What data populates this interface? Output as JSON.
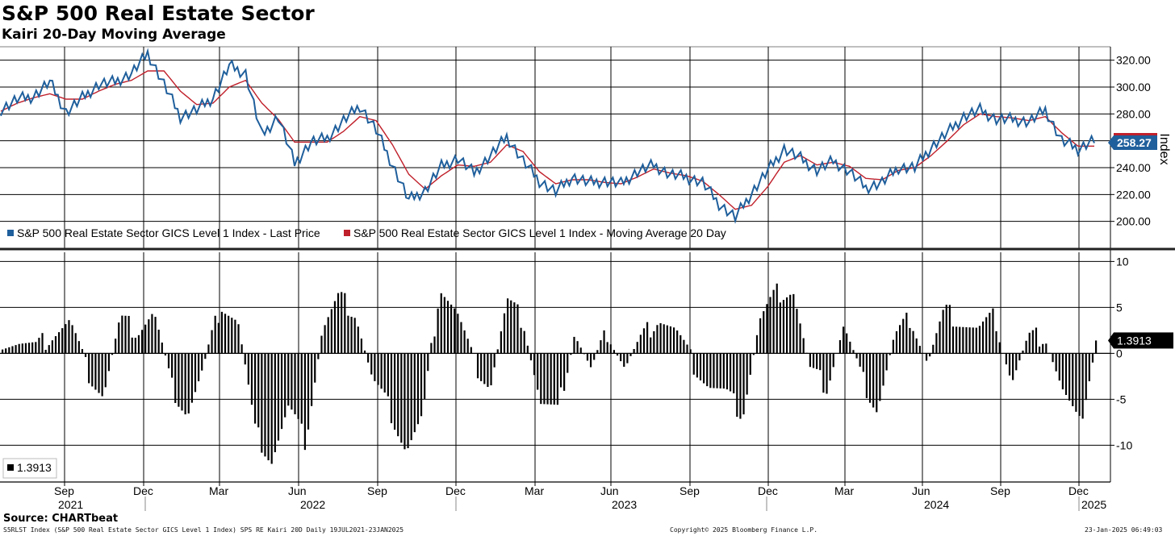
{
  "header": {
    "title": "S&P 500 Real Estate Sector",
    "subtitle": "Kairi 20-Day Moving Average"
  },
  "footer": {
    "source": "Source: CHARTbeat",
    "left_note": "S5RLST Index (S&P 500 Real Estate Sector GICS Level 1 Index) SPS RE Kairi 20D  Daily 19JUL2021-23JAN2025",
    "center_note": "Copyright© 2025 Bloomberg Finance L.P.",
    "right_note": "23-Jan-2025 06:49:03"
  },
  "colors": {
    "price": "#1f5f9c",
    "moving_average": "#c0202b",
    "kairi": "#000000",
    "grid": "#000000"
  },
  "chart_data": [
    {
      "type": "line",
      "ylabel": "Index",
      "ylim": [
        180,
        330
      ],
      "y_ticks": [
        "200.00",
        "220.00",
        "240.00",
        "260.00",
        "280.00",
        "300.00",
        "320.00"
      ],
      "legend": [
        "S&P 500 Real Estate Sector GICS Level 1 Index - Last Price",
        "S&P 500 Real Estate Sector GICS Level 1 Index - Moving Average 20 Day"
      ],
      "legend_position": "bottom-left",
      "last_value_label": "258.27",
      "series": [
        {
          "name": "S&P 500 Real Estate Sector GICS Level 1 Index - Last Price",
          "values": [
            283,
            291,
            293,
            304,
            281,
            292,
            302,
            304,
            310,
            325,
            302,
            278,
            283,
            292,
            316,
            310,
            264,
            278,
            243,
            259,
            262,
            275,
            286,
            268,
            242,
            216,
            223,
            241,
            247,
            236,
            249,
            263,
            245,
            230,
            222,
            233,
            229,
            230,
            228,
            237,
            242,
            235,
            233,
            229,
            213,
            203,
            221,
            238,
            254,
            247,
            238,
            245,
            237,
            225,
            229,
            240,
            240,
            255,
            266,
            278,
            283,
            276,
            276,
            274,
            283,
            260,
            254,
            261
          ]
        },
        {
          "name": "S&P 500 Real Estate Sector GICS Level 1 Index - Moving Average 20 Day",
          "values": [
            282,
            288,
            292,
            295,
            291,
            291,
            297,
            302,
            305,
            312,
            312,
            297,
            287,
            288,
            300,
            305,
            288,
            276,
            259,
            259,
            259,
            267,
            278,
            275,
            257,
            235,
            224,
            234,
            242,
            241,
            244,
            257,
            252,
            237,
            228,
            231,
            231,
            229,
            228,
            233,
            239,
            236,
            234,
            230,
            220,
            209,
            212,
            226,
            244,
            249,
            242,
            244,
            241,
            232,
            231,
            238,
            240,
            249,
            260,
            272,
            280,
            278,
            277,
            275,
            278,
            266,
            256,
            256
          ]
        }
      ]
    },
    {
      "type": "bar",
      "ylim": [
        -14,
        11
      ],
      "y_ticks": [
        "-10",
        "-5",
        "0",
        "5",
        "10"
      ],
      "legend": [
        "1.3913"
      ],
      "legend_position": "bottom-left",
      "last_value_label": "1.3913",
      "series": [
        {
          "name": "SPS RE Kairi 20D",
          "values": [
            1.5,
            1.2,
            0.5,
            2.2,
            3.5,
            -1.8,
            -4.5,
            3.5,
            2.5,
            4.5,
            -3.5,
            -6.5,
            -1.5,
            5.5,
            3.5,
            -8.5,
            -11.5,
            -6.0,
            -9.5,
            2.5,
            6.0,
            4.5,
            -3.0,
            -6.0,
            -10.5,
            -7.0,
            7.5,
            4.5,
            -1.0,
            -3.5,
            5.5,
            3.5,
            -5.5,
            -6.5,
            2.5,
            -2.0,
            2.5,
            -1.5,
            1.5,
            4.0,
            2.5,
            -1.0,
            -3.5,
            -4.5,
            -6.5,
            3.5,
            6.5,
            7.0,
            -2.0,
            -3.5,
            3.0,
            -2.5,
            -6.0,
            1.5,
            4.0,
            -1.0,
            4.5,
            3.5,
            2.5,
            4.0,
            -3.0,
            1.5,
            2.0,
            -4.0,
            -8.0,
            1.4
          ]
        }
      ]
    }
  ],
  "x_axis": {
    "months": [
      "Sep",
      "Dec",
      "Mar",
      "Jun",
      "Sep",
      "Dec",
      "Mar",
      "Jun",
      "Sep",
      "Dec",
      "Mar",
      "Jun",
      "Sep",
      "Dec"
    ],
    "years": [
      "2021",
      "2022",
      "2023",
      "2024",
      "2025"
    ]
  }
}
